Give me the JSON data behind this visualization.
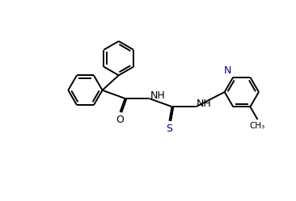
{
  "background_color": "#ffffff",
  "line_color": "#000000",
  "line_color_blue": "#000080",
  "line_width": 1.4,
  "figsize": [
    3.66,
    2.49
  ],
  "dpi": 100,
  "xlim": [
    0,
    10
  ],
  "ylim": [
    0,
    6.8
  ]
}
